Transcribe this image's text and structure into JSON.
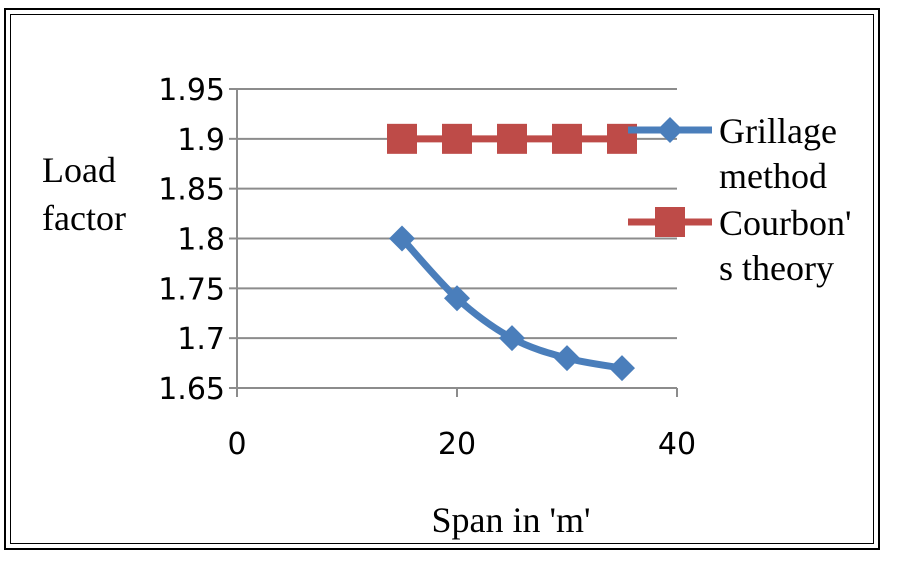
{
  "chart_data": {
    "type": "line",
    "title": "",
    "xlabel": "Span in 'm'",
    "ylabel_lines": [
      "Load",
      "factor"
    ],
    "xlim": [
      0,
      40
    ],
    "ylim": [
      1.65,
      1.95
    ],
    "x_ticks": [
      0,
      20,
      40
    ],
    "x_tick_labels": [
      "0",
      "20",
      "40"
    ],
    "y_ticks": [
      1.65,
      1.7,
      1.75,
      1.8,
      1.85,
      1.9,
      1.95
    ],
    "y_tick_labels": [
      "1.65",
      "1.7",
      "1.75",
      "1.8",
      "1.85",
      "1.9",
      "1.95"
    ],
    "grid": true,
    "legend_position": "right",
    "series": [
      {
        "name_lines": [
          "Grillage",
          "method"
        ],
        "marker": "diamond",
        "color": "#4a7ebb",
        "x": [
          15,
          20,
          25,
          30,
          35
        ],
        "y": [
          1.8,
          1.74,
          1.7,
          1.68,
          1.67
        ]
      },
      {
        "name_lines": [
          "Courbon'",
          "s theory"
        ],
        "marker": "square",
        "color": "#be4b48",
        "x": [
          15,
          20,
          25,
          30,
          35
        ],
        "y": [
          1.9,
          1.9,
          1.9,
          1.9,
          1.9
        ]
      }
    ]
  }
}
